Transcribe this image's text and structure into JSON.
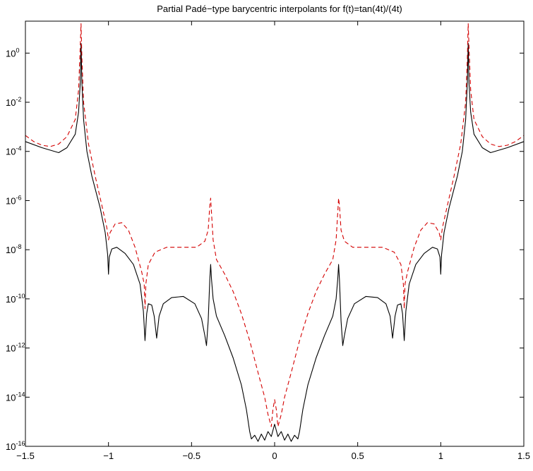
{
  "chart_data": {
    "type": "line",
    "title": "Partial Padé−type barycentric interpolants for f(t)=tan(4t)/(4t)",
    "xlabel": "",
    "ylabel": "",
    "xlim": [
      -1.5,
      1.5
    ],
    "ylim_exp": [
      -16,
      1.3
    ],
    "y_scale": "log",
    "grid": false,
    "legend": "none",
    "x_ticks": [
      {
        "value": -1.5,
        "label": "−1.5"
      },
      {
        "value": -1,
        "label": "−1"
      },
      {
        "value": -0.5,
        "label": "−0.5"
      },
      {
        "value": 0,
        "label": "0"
      },
      {
        "value": 0.5,
        "label": "0.5"
      },
      {
        "value": 1,
        "label": "1"
      },
      {
        "value": 1.5,
        "label": "1.5"
      }
    ],
    "y_ticks": [
      {
        "exp": 0,
        "base": "10",
        "power": "0"
      },
      {
        "exp": -2,
        "base": "10",
        "power": "-2"
      },
      {
        "exp": -4,
        "base": "10",
        "power": "-4"
      },
      {
        "exp": -6,
        "base": "10",
        "power": "-6"
      },
      {
        "exp": -8,
        "base": "10",
        "power": "-8"
      },
      {
        "exp": -10,
        "base": "10",
        "power": "-10"
      },
      {
        "exp": -12,
        "base": "10",
        "power": "-12"
      },
      {
        "exp": -14,
        "base": "10",
        "power": "-14"
      },
      {
        "exp": -16,
        "base": "10",
        "power": "-16"
      }
    ],
    "series": [
      {
        "color": "#000000",
        "dash": "solid",
        "points": [
          [
            -1.5,
            -3.6
          ],
          [
            -1.4,
            -3.85
          ],
          [
            -1.3,
            -4.05
          ],
          [
            -1.25,
            -3.85
          ],
          [
            -1.2,
            -3.3
          ],
          [
            -1.18,
            -2.4
          ],
          [
            -1.17,
            -1.2
          ],
          [
            -1.165,
            0.4
          ],
          [
            -1.16,
            -1.2
          ],
          [
            -1.15,
            -2.7
          ],
          [
            -1.13,
            -4.0
          ],
          [
            -1.1,
            -5.0
          ],
          [
            -1.05,
            -6.3
          ],
          [
            -1.02,
            -7.3
          ],
          [
            -1.005,
            -8.2
          ],
          [
            -1.0,
            -9.0
          ],
          [
            -0.995,
            -8.3
          ],
          [
            -0.98,
            -7.97
          ],
          [
            -0.95,
            -7.9
          ],
          [
            -0.9,
            -8.15
          ],
          [
            -0.85,
            -8.6
          ],
          [
            -0.81,
            -9.4
          ],
          [
            -0.79,
            -10.5
          ],
          [
            -0.78,
            -11.7
          ],
          [
            -0.77,
            -10.6
          ],
          [
            -0.76,
            -10.2
          ],
          [
            -0.74,
            -10.25
          ],
          [
            -0.725,
            -10.7
          ],
          [
            -0.71,
            -11.6
          ],
          [
            -0.695,
            -10.7
          ],
          [
            -0.67,
            -10.2
          ],
          [
            -0.62,
            -9.95
          ],
          [
            -0.55,
            -9.9
          ],
          [
            -0.48,
            -10.2
          ],
          [
            -0.44,
            -10.8
          ],
          [
            -0.42,
            -11.5
          ],
          [
            -0.41,
            -11.9
          ],
          [
            -0.4,
            -10.9
          ],
          [
            -0.39,
            -9.2
          ],
          [
            -0.385,
            -8.6
          ],
          [
            -0.38,
            -9.2
          ],
          [
            -0.37,
            -10.0
          ],
          [
            -0.35,
            -10.7
          ],
          [
            -0.3,
            -11.5
          ],
          [
            -0.25,
            -12.4
          ],
          [
            -0.2,
            -13.5
          ],
          [
            -0.17,
            -14.5
          ],
          [
            -0.15,
            -15.4
          ],
          [
            -0.14,
            -15.7
          ],
          [
            -0.12,
            -15.55
          ],
          [
            -0.1,
            -15.8
          ],
          [
            -0.08,
            -15.5
          ],
          [
            -0.06,
            -15.75
          ],
          [
            -0.04,
            -15.4
          ],
          [
            -0.02,
            -15.6
          ],
          [
            0,
            -15.1
          ],
          [
            0.02,
            -15.6
          ],
          [
            0.04,
            -15.4
          ],
          [
            0.06,
            -15.75
          ],
          [
            0.08,
            -15.5
          ],
          [
            0.1,
            -15.8
          ],
          [
            0.12,
            -15.55
          ],
          [
            0.14,
            -15.7
          ],
          [
            0.15,
            -15.4
          ],
          [
            0.17,
            -14.5
          ],
          [
            0.2,
            -13.5
          ],
          [
            0.25,
            -12.4
          ],
          [
            0.3,
            -11.5
          ],
          [
            0.35,
            -10.7
          ],
          [
            0.37,
            -10.0
          ],
          [
            0.38,
            -9.2
          ],
          [
            0.385,
            -8.6
          ],
          [
            0.39,
            -9.2
          ],
          [
            0.4,
            -10.9
          ],
          [
            0.41,
            -11.9
          ],
          [
            0.42,
            -11.5
          ],
          [
            0.44,
            -10.8
          ],
          [
            0.48,
            -10.2
          ],
          [
            0.55,
            -9.9
          ],
          [
            0.62,
            -9.95
          ],
          [
            0.67,
            -10.2
          ],
          [
            0.695,
            -10.7
          ],
          [
            0.71,
            -11.6
          ],
          [
            0.725,
            -10.7
          ],
          [
            0.74,
            -10.25
          ],
          [
            0.76,
            -10.2
          ],
          [
            0.77,
            -10.6
          ],
          [
            0.78,
            -11.7
          ],
          [
            0.79,
            -10.5
          ],
          [
            0.81,
            -9.4
          ],
          [
            0.85,
            -8.6
          ],
          [
            0.9,
            -8.15
          ],
          [
            0.95,
            -7.9
          ],
          [
            0.98,
            -7.97
          ],
          [
            0.995,
            -8.3
          ],
          [
            1.0,
            -9.0
          ],
          [
            1.005,
            -8.2
          ],
          [
            1.02,
            -7.3
          ],
          [
            1.05,
            -6.3
          ],
          [
            1.1,
            -5.0
          ],
          [
            1.13,
            -4.0
          ],
          [
            1.15,
            -2.7
          ],
          [
            1.16,
            -1.2
          ],
          [
            1.165,
            0.4
          ],
          [
            1.17,
            -1.2
          ],
          [
            1.18,
            -2.4
          ],
          [
            1.2,
            -3.3
          ],
          [
            1.25,
            -3.85
          ],
          [
            1.3,
            -4.05
          ],
          [
            1.4,
            -3.85
          ],
          [
            1.5,
            -3.6
          ]
        ]
      },
      {
        "color": "#d40000",
        "dash": "dashed",
        "points": [
          [
            -1.5,
            -3.35
          ],
          [
            -1.45,
            -3.6
          ],
          [
            -1.4,
            -3.75
          ],
          [
            -1.35,
            -3.8
          ],
          [
            -1.3,
            -3.7
          ],
          [
            -1.25,
            -3.4
          ],
          [
            -1.2,
            -2.7
          ],
          [
            -1.18,
            -1.5
          ],
          [
            -1.17,
            0.3
          ],
          [
            -1.165,
            1.2
          ],
          [
            -1.16,
            -0.2
          ],
          [
            -1.15,
            -2.0
          ],
          [
            -1.12,
            -3.7
          ],
          [
            -1.08,
            -5.0
          ],
          [
            -1.04,
            -6.2
          ],
          [
            -1.01,
            -7.1
          ],
          [
            -1.0,
            -7.6
          ],
          [
            -0.99,
            -7.3
          ],
          [
            -0.96,
            -6.95
          ],
          [
            -0.92,
            -6.9
          ],
          [
            -0.88,
            -7.2
          ],
          [
            -0.84,
            -7.9
          ],
          [
            -0.8,
            -8.9
          ],
          [
            -0.785,
            -9.4
          ],
          [
            -0.78,
            -10.4
          ],
          [
            -0.775,
            -9.4
          ],
          [
            -0.76,
            -8.6
          ],
          [
            -0.72,
            -8.1
          ],
          [
            -0.65,
            -7.9
          ],
          [
            -0.55,
            -7.9
          ],
          [
            -0.47,
            -7.9
          ],
          [
            -0.42,
            -7.65
          ],
          [
            -0.4,
            -7.2
          ],
          [
            -0.39,
            -6.2
          ],
          [
            -0.385,
            -5.9
          ],
          [
            -0.38,
            -6.5
          ],
          [
            -0.37,
            -7.6
          ],
          [
            -0.35,
            -8.4
          ],
          [
            -0.3,
            -9.0
          ],
          [
            -0.25,
            -9.7
          ],
          [
            -0.2,
            -10.6
          ],
          [
            -0.15,
            -11.7
          ],
          [
            -0.1,
            -13.0
          ],
          [
            -0.06,
            -14.0
          ],
          [
            -0.04,
            -14.7
          ],
          [
            -0.02,
            -15.2
          ],
          [
            -0.01,
            -14.5
          ],
          [
            0,
            -14.1
          ],
          [
            0.01,
            -14.5
          ],
          [
            0.02,
            -15.2
          ],
          [
            0.04,
            -14.7
          ],
          [
            0.06,
            -14.0
          ],
          [
            0.1,
            -13.0
          ],
          [
            0.15,
            -11.7
          ],
          [
            0.2,
            -10.6
          ],
          [
            0.25,
            -9.7
          ],
          [
            0.3,
            -9.0
          ],
          [
            0.35,
            -8.4
          ],
          [
            0.37,
            -7.6
          ],
          [
            0.38,
            -6.5
          ],
          [
            0.385,
            -5.9
          ],
          [
            0.39,
            -6.2
          ],
          [
            0.4,
            -7.2
          ],
          [
            0.42,
            -7.65
          ],
          [
            0.47,
            -7.9
          ],
          [
            0.55,
            -7.9
          ],
          [
            0.65,
            -7.9
          ],
          [
            0.72,
            -8.1
          ],
          [
            0.76,
            -8.6
          ],
          [
            0.775,
            -9.4
          ],
          [
            0.78,
            -10.4
          ],
          [
            0.785,
            -9.4
          ],
          [
            0.8,
            -8.9
          ],
          [
            0.84,
            -7.9
          ],
          [
            0.88,
            -7.2
          ],
          [
            0.92,
            -6.9
          ],
          [
            0.96,
            -6.95
          ],
          [
            0.99,
            -7.3
          ],
          [
            1.0,
            -7.6
          ],
          [
            1.01,
            -7.1
          ],
          [
            1.04,
            -6.2
          ],
          [
            1.08,
            -5.0
          ],
          [
            1.12,
            -3.7
          ],
          [
            1.15,
            -2.0
          ],
          [
            1.16,
            -0.2
          ],
          [
            1.165,
            1.2
          ],
          [
            1.17,
            0.3
          ],
          [
            1.18,
            -1.5
          ],
          [
            1.2,
            -2.7
          ],
          [
            1.25,
            -3.4
          ],
          [
            1.3,
            -3.7
          ],
          [
            1.35,
            -3.8
          ],
          [
            1.4,
            -3.75
          ],
          [
            1.45,
            -3.6
          ],
          [
            1.5,
            -3.35
          ]
        ]
      }
    ]
  }
}
